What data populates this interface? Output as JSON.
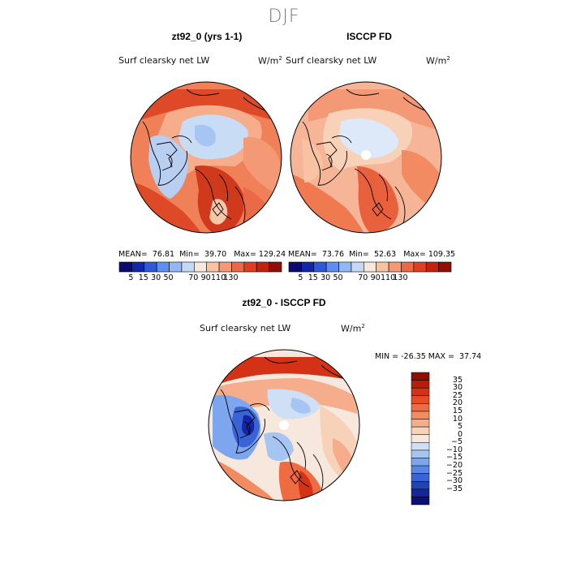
{
  "season": "DJF",
  "panels": [
    {
      "title": "zt92_0 (yrs 1-1)",
      "variable": "Surf clearsky net LW",
      "units_base": "W/m",
      "units_exp": "2",
      "stats": {
        "mean_label": "MEAN=",
        "mean": "76.81",
        "min_label": "Min=",
        "min": "39.70",
        "max_label": "Max=",
        "max": "129.24"
      }
    },
    {
      "title": "ISCCP FD",
      "variable": "Surf clearsky net LW",
      "units_base": "W/m",
      "units_exp": "2",
      "stats": {
        "mean_label": "MEAN=",
        "mean": "73.76",
        "min_label": "Min=",
        "min": "52.63",
        "max_label": "Max=",
        "max": "109.35"
      }
    }
  ],
  "abs_colorbar": {
    "colors": [
      "#0b0a6e",
      "#1326a8",
      "#2f59d6",
      "#5f8ef0",
      "#93b7f5",
      "#c5d9f7",
      "#f6e8dc",
      "#f8c3a3",
      "#f39976",
      "#ea6a47",
      "#dd3f22",
      "#c0240f",
      "#8f0f06"
    ],
    "tick_labels": [
      "5",
      "15",
      "30",
      "50",
      "70",
      "90",
      "110",
      "130"
    ]
  },
  "diff_panel": {
    "title": "zt92_0 - ISCCP FD",
    "variable": "Surf clearsky net LW",
    "units_base": "W/m",
    "units_exp": "2",
    "minmax": {
      "min_label": "MIN =",
      "min": "-26.35",
      "max_label": "MAX =",
      "max": "37.74"
    }
  },
  "diff_colorbar": {
    "colors": [
      "#8f0f06",
      "#b81c0b",
      "#d43216",
      "#e84c25",
      "#ef6b42",
      "#f28a62",
      "#f5ad8b",
      "#f8d2b8",
      "#f6e8dc",
      "#cfe0f6",
      "#a7c5f3",
      "#7ea6ee",
      "#5a86e6",
      "#3a63d3",
      "#2243b5",
      "#13279a",
      "#0a0f7a"
    ],
    "labels": [
      "35",
      "30",
      "25",
      "20",
      "15",
      "10",
      "5",
      "0",
      "−5",
      "−10",
      "−15",
      "−20",
      "−25",
      "−30",
      "−35"
    ]
  }
}
